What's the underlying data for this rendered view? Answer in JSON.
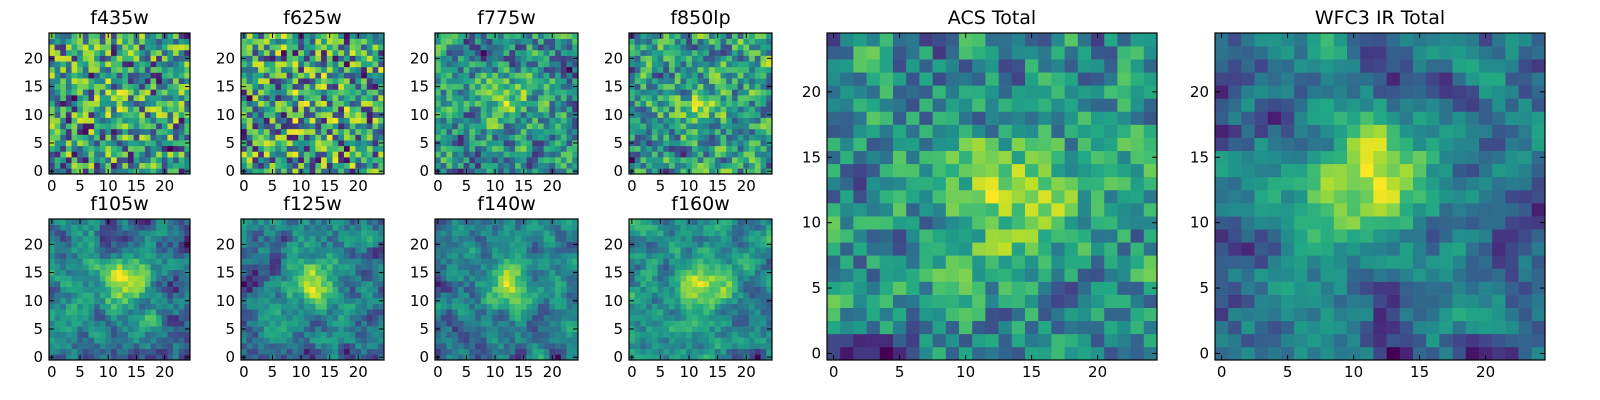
{
  "chart_data": [
    {
      "type": "heatmap",
      "title": "f435w",
      "grid": [
        25,
        25
      ],
      "xlim": [
        -0.5,
        24.5
      ],
      "ylim": [
        -0.5,
        24.5
      ],
      "xticks": [
        0,
        5,
        10,
        15,
        20
      ],
      "yticks": [
        0,
        5,
        10,
        15,
        20
      ],
      "colormap": "viridis",
      "seed": 11,
      "smooth": 0.15,
      "blob": 0.15
    },
    {
      "type": "heatmap",
      "title": "f625w",
      "grid": [
        25,
        25
      ],
      "xlim": [
        -0.5,
        24.5
      ],
      "ylim": [
        -0.5,
        24.5
      ],
      "xticks": [
        0,
        5,
        10,
        15,
        20
      ],
      "yticks": [
        0,
        5,
        10,
        15,
        20
      ],
      "colormap": "viridis",
      "seed": 23,
      "smooth": 0.15,
      "blob": 0.1
    },
    {
      "type": "heatmap",
      "title": "f775w",
      "grid": [
        25,
        25
      ],
      "xlim": [
        -0.5,
        24.5
      ],
      "ylim": [
        -0.5,
        24.5
      ],
      "xticks": [
        0,
        5,
        10,
        15,
        20
      ],
      "yticks": [
        0,
        5,
        10,
        15,
        20
      ],
      "colormap": "viridis",
      "seed": 37,
      "smooth": 0.2,
      "blob": 0.3
    },
    {
      "type": "heatmap",
      "title": "f850lp",
      "grid": [
        25,
        25
      ],
      "xlim": [
        -0.5,
        24.5
      ],
      "ylim": [
        -0.5,
        24.5
      ],
      "xticks": [
        0,
        5,
        10,
        15,
        20
      ],
      "yticks": [
        0,
        5,
        10,
        15,
        20
      ],
      "colormap": "viridis",
      "seed": 41,
      "smooth": 0.2,
      "blob": 0.25
    },
    {
      "type": "heatmap",
      "title": "f105w",
      "grid": [
        25,
        25
      ],
      "xlim": [
        -0.5,
        24.5
      ],
      "ylim": [
        -0.5,
        24.5
      ],
      "xticks": [
        0,
        5,
        10,
        15,
        20
      ],
      "yticks": [
        0,
        5,
        10,
        15,
        20
      ],
      "colormap": "viridis",
      "seed": 53,
      "smooth": 0.6,
      "blob": 0.5
    },
    {
      "type": "heatmap",
      "title": "f125w",
      "grid": [
        25,
        25
      ],
      "xlim": [
        -0.5,
        24.5
      ],
      "ylim": [
        -0.5,
        24.5
      ],
      "xticks": [
        0,
        5,
        10,
        15,
        20
      ],
      "yticks": [
        0,
        5,
        10,
        15,
        20
      ],
      "colormap": "viridis",
      "seed": 67,
      "smooth": 0.6,
      "blob": 0.5
    },
    {
      "type": "heatmap",
      "title": "f140w",
      "grid": [
        25,
        25
      ],
      "xlim": [
        -0.5,
        24.5
      ],
      "ylim": [
        -0.5,
        24.5
      ],
      "xticks": [
        0,
        5,
        10,
        15,
        20
      ],
      "yticks": [
        0,
        5,
        10,
        15,
        20
      ],
      "colormap": "viridis",
      "seed": 79,
      "smooth": 0.6,
      "blob": 0.55
    },
    {
      "type": "heatmap",
      "title": "f160w",
      "grid": [
        25,
        25
      ],
      "xlim": [
        -0.5,
        24.5
      ],
      "ylim": [
        -0.5,
        24.5
      ],
      "xticks": [
        0,
        5,
        10,
        15,
        20
      ],
      "yticks": [
        0,
        5,
        10,
        15,
        20
      ],
      "colormap": "viridis",
      "seed": 83,
      "smooth": 0.6,
      "blob": 0.6
    },
    {
      "type": "heatmap",
      "title": "ACS Total",
      "grid": [
        25,
        25
      ],
      "xlim": [
        -0.5,
        24.5
      ],
      "ylim": [
        -0.5,
        24.5
      ],
      "xticks": [
        0,
        5,
        10,
        15,
        20
      ],
      "yticks": [
        0,
        5,
        10,
        15,
        20
      ],
      "colormap": "viridis",
      "seed": 97,
      "smooth": 0.35,
      "blob": 0.45
    },
    {
      "type": "heatmap",
      "title": "WFC3 IR Total",
      "grid": [
        25,
        25
      ],
      "xlim": [
        -0.5,
        24.5
      ],
      "ylim": [
        -0.5,
        24.5
      ],
      "xticks": [
        0,
        5,
        10,
        15,
        20
      ],
      "yticks": [
        0,
        5,
        10,
        15,
        20
      ],
      "colormap": "viridis",
      "seed": 101,
      "smooth": 0.7,
      "blob": 0.7
    }
  ]
}
